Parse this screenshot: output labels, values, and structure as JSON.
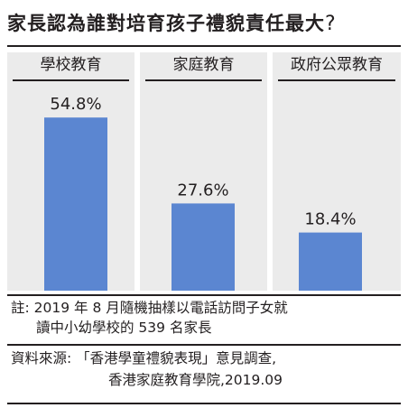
{
  "title": "家長認為誰對培育孩子禮貌責任最大",
  "title_mark": "?",
  "chart_data": {
    "type": "bar",
    "categories": [
      "學校教育",
      "家庭教育",
      "政府公眾教育"
    ],
    "values": [
      54.8,
      27.6,
      18.4
    ],
    "value_labels": [
      "54.8%",
      "27.6%",
      "18.4%"
    ],
    "bar_color": "#5b86d1",
    "ylim": [
      0,
      60
    ],
    "grid": false
  },
  "note": {
    "prefix": "註:",
    "line1": "2019 年 8 月隨機抽樣以電話訪問子女就",
    "line2": "讀中小幼學校的 539 名家長"
  },
  "source": {
    "prefix": "資料來源:",
    "line1": "「香港學童禮貌表現」意見調查,",
    "line2": "香港家庭教育學院,2019.09"
  }
}
